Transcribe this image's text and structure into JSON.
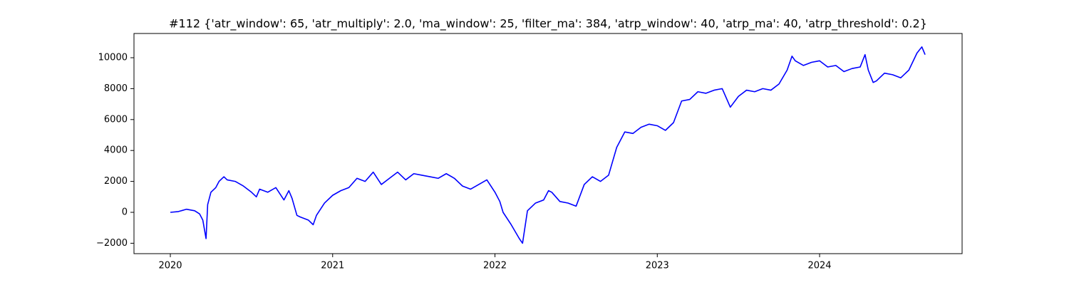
{
  "chart_data": {
    "type": "line",
    "title": "#112 {'atr_window': 65, 'atr_multiply': 2.0, 'ma_window': 25, 'filter_ma': 384, 'atrp_window': 40, 'atrp_ma': 40, 'atrp_threshold': 0.2}",
    "x": [
      2020.0,
      2020.05,
      2020.1,
      2020.15,
      2020.18,
      2020.2,
      2020.22,
      2020.23,
      2020.25,
      2020.28,
      2020.3,
      2020.33,
      2020.35,
      2020.4,
      2020.45,
      2020.5,
      2020.53,
      2020.55,
      2020.6,
      2020.65,
      2020.7,
      2020.73,
      2020.75,
      2020.78,
      2020.8,
      2020.85,
      2020.88,
      2020.9,
      2020.95,
      2021.0,
      2021.05,
      2021.1,
      2021.15,
      2021.2,
      2021.25,
      2021.3,
      2021.35,
      2021.4,
      2021.45,
      2021.5,
      2021.55,
      2021.6,
      2021.65,
      2021.7,
      2021.75,
      2021.8,
      2021.85,
      2021.9,
      2021.95,
      2022.0,
      2022.03,
      2022.05,
      2022.1,
      2022.15,
      2022.17,
      2022.2,
      2022.25,
      2022.3,
      2022.33,
      2022.35,
      2022.4,
      2022.45,
      2022.5,
      2022.55,
      2022.6,
      2022.65,
      2022.7,
      2022.75,
      2022.8,
      2022.85,
      2022.9,
      2022.95,
      2023.0,
      2023.05,
      2023.1,
      2023.15,
      2023.2,
      2023.25,
      2023.3,
      2023.35,
      2023.4,
      2023.45,
      2023.5,
      2023.55,
      2023.6,
      2023.65,
      2023.7,
      2023.75,
      2023.8,
      2023.83,
      2023.85,
      2023.9,
      2023.95,
      2024.0,
      2024.05,
      2024.1,
      2024.15,
      2024.2,
      2024.25,
      2024.28,
      2024.3,
      2024.33,
      2024.35,
      2024.4,
      2024.45,
      2024.5,
      2024.55,
      2024.6,
      2024.63,
      2024.65
    ],
    "series": [
      {
        "color": "#0000ff",
        "values": [
          0,
          50,
          200,
          100,
          -100,
          -500,
          -1700,
          500,
          1300,
          1600,
          2000,
          2300,
          2100,
          2000,
          1700,
          1300,
          1000,
          1500,
          1300,
          1600,
          800,
          1400,
          900,
          -200,
          -300,
          -500,
          -800,
          -200,
          600,
          1100,
          1400,
          1600,
          2200,
          2000,
          2600,
          1800,
          2200,
          2600,
          2100,
          2500,
          2400,
          2300,
          2200,
          2500,
          2200,
          1700,
          1500,
          1800,
          2100,
          1300,
          700,
          0,
          -800,
          -1700,
          -2000,
          100,
          600,
          800,
          1400,
          1300,
          700,
          600,
          400,
          1800,
          2300,
          2000,
          2400,
          4200,
          5200,
          5100,
          5500,
          5700,
          5600,
          5300,
          5800,
          7200,
          7300,
          7800,
          7700,
          7900,
          8000,
          6800,
          7500,
          7900,
          7800,
          8000,
          7900,
          8300,
          9200,
          10100,
          9800,
          9500,
          9700,
          9800,
          9400,
          9500,
          9100,
          9300,
          9400,
          10200,
          9200,
          8400,
          8500,
          9000,
          8900,
          8700,
          9200,
          10300,
          10700,
          10200
        ]
      }
    ],
    "xlim": [
      2019.776,
      2024.878
    ],
    "xticks": [
      2020,
      2021,
      2022,
      2023,
      2024
    ],
    "ylim": [
      -2673,
      11567
    ],
    "yticks": [
      {
        "value": -2000,
        "label": "−2000"
      },
      0,
      2000,
      4000,
      6000,
      8000,
      10000
    ]
  }
}
